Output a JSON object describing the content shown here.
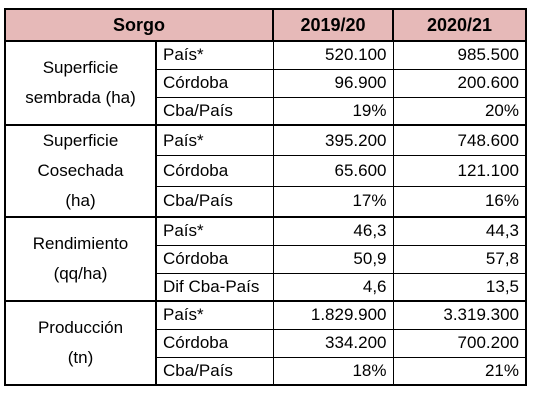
{
  "table": {
    "header": [
      "Sorgo",
      "2019/20",
      "2020/21"
    ],
    "groups": [
      {
        "label_lines": [
          "Superficie",
          "sembrada (ha)"
        ],
        "rows": [
          [
            "País*",
            "520.100",
            "985.500"
          ],
          [
            "Córdoba",
            "96.900",
            "200.600"
          ],
          [
            "Cba/País",
            "19%",
            "20%"
          ]
        ]
      },
      {
        "label_lines": [
          "Superficie",
          "Cosechada",
          "(ha)"
        ],
        "rows": [
          [
            "País*",
            "395.200",
            "748.600"
          ],
          [
            "Córdoba",
            "65.600",
            "121.100"
          ],
          [
            "Cba/País",
            "17%",
            "16%"
          ]
        ]
      },
      {
        "label_lines": [
          "Rendimiento",
          "(qq/ha)"
        ],
        "rows": [
          [
            "País*",
            "46,3",
            "44,3"
          ],
          [
            "Córdoba",
            "50,9",
            "57,8"
          ],
          [
            "Dif Cba-País",
            "4,6",
            "13,5"
          ]
        ]
      },
      {
        "label_lines": [
          "Producción",
          "(tn)"
        ],
        "rows": [
          [
            "País*",
            "1.829.900",
            "3.319.300"
          ],
          [
            "Córdoba",
            "334.200",
            "700.200"
          ],
          [
            "Cba/País",
            "18%",
            "21%"
          ]
        ]
      }
    ]
  }
}
